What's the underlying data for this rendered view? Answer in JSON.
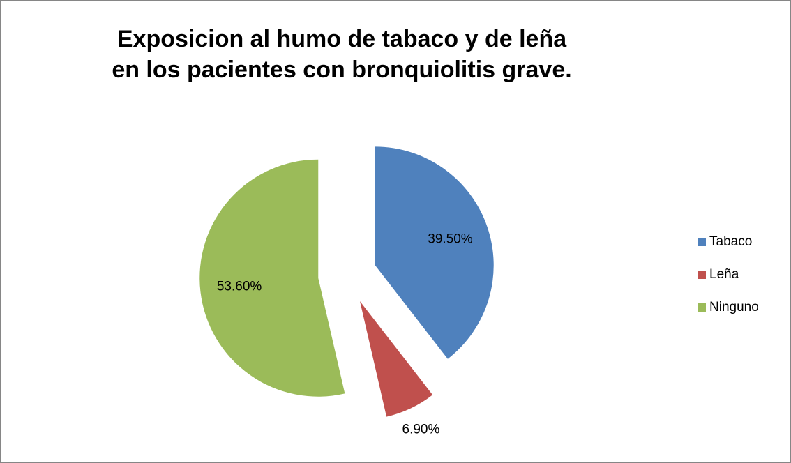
{
  "chart_data": {
    "type": "pie",
    "title": "Exposicion al humo de tabaco y de leña en los pacientes con bronquiolitis grave.",
    "categories": [
      "Tabaco",
      "Leña",
      "Ninguno"
    ],
    "values": [
      39.5,
      6.9,
      53.6
    ],
    "value_labels": [
      "39.50%",
      "6.90%",
      "53.60%"
    ],
    "colors": [
      "#4f81bd",
      "#c0504d",
      "#9bbb59"
    ],
    "exploded": true,
    "legend": "right"
  }
}
